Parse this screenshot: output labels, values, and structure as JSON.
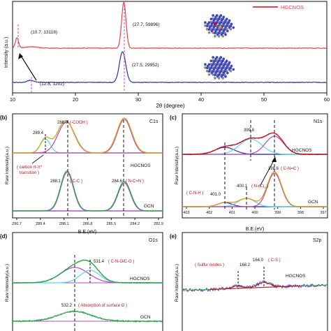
{
  "colors": {
    "red": "#e8414a",
    "blue": "#2d2fb0",
    "green": "#2fa24a",
    "gold": "#d9a21a",
    "magenta": "#b04bc0",
    "cyan": "#5fd6e0",
    "dashMagenta": "#d04ad0",
    "black": "#111111",
    "darkred": "#c0141c",
    "atomBlue": "#3b46c8",
    "atomGray": "#8a8a8a"
  },
  "panel_a": {
    "legend": "HGCNOS",
    "xlabel": "2θ (degree)",
    "ylabel": "Intensity (a.u.)",
    "xticks": [
      "10",
      "20",
      "30",
      "40",
      "50",
      "60"
    ],
    "annotations": [
      "(10.7, 13118)",
      "(27.7, 59896)",
      "(12.8, 1202)",
      "(27.5, 29952)"
    ]
  },
  "panel_b": {
    "letter": "(b)",
    "title": "C1s",
    "xlabel": "B.E.(eV)",
    "ylabel": "Raw Intensity(a.u.)",
    "xticks": [
      "290.7",
      "289.4",
      "288.1",
      "286.8",
      "285.5",
      "284.2",
      "282.9"
    ],
    "top_label": "HGCNOS",
    "bottom_label": "GCN",
    "peaks": [
      "289.4",
      "288.0",
      "(-COOH )",
      "288.1",
      "( C-C )",
      "284.6",
      "( N-C=N )"
    ],
    "note_line1": "( carbon π-π*",
    "note_line2": "transition )"
  },
  "panel_c": {
    "letter": "(c)",
    "title": "N1s",
    "xlabel": "B.E.(eV)",
    "ylabel": "Raw Intensity(a.u.)",
    "xticks": [
      "403",
      "402",
      "401",
      "400",
      "399",
      "398",
      "397"
    ],
    "top_label": "HGCNOS",
    "bottom_label": "GCN",
    "peaks": [
      "399.8",
      "400.1",
      "N-(C)",
      "3",
      "398.6",
      "( C-N=C )",
      "( C-N-H )",
      "401.0"
    ]
  },
  "panel_d": {
    "letter": "(d)",
    "title": "O1s",
    "ylabel": "Raw Intensity(a.u.)",
    "top_label": "HGCNOS",
    "bottom_label": "GCN",
    "peaks": [
      "531.4",
      "( C-N-O/C-O )",
      "532.2",
      "( Absorption of surface O )"
    ]
  },
  "panel_e": {
    "letter": "(e)",
    "title": "S2p",
    "ylabel": "Raw Intensity(a.u.)",
    "top_label": "HGCNOS",
    "peaks": [
      "( Sulfur oxides )",
      "168.2",
      "164.0",
      "( C-S )"
    ]
  },
  "chart_data": [
    {
      "type": "line",
      "panel": "(a)",
      "xlabel": "2θ (degree)",
      "ylabel": "Intensity (a.u.)",
      "xlim": [
        10,
        60
      ],
      "series": [
        {
          "name": "HGCNOS",
          "peaks": [
            {
              "x": 10.7,
              "y": 13118
            },
            {
              "x": 27.7,
              "y": 59896
            }
          ]
        },
        {
          "name": "",
          "peaks": [
            {
              "x": 12.8,
              "y": 1202
            },
            {
              "x": 27.5,
              "y": 29952
            }
          ]
        }
      ]
    },
    {
      "type": "line",
      "panel": "(b)",
      "title": "C1s",
      "xlabel": "B.E.(eV)",
      "ylabel": "Raw Intensity(a.u.)",
      "xlim": [
        290.7,
        282.9
      ],
      "series": [
        {
          "name": "HGCNOS",
          "peaks_eV": [
            289.4,
            288.0,
            284.6
          ]
        },
        {
          "name": "GCN",
          "peaks_eV": [
            288.1,
            284.6
          ]
        }
      ]
    },
    {
      "type": "line",
      "panel": "(c)",
      "title": "N1s",
      "xlabel": "B.E.(eV)",
      "ylabel": "Raw Intensity(a.u.)",
      "xlim": [
        403,
        397
      ],
      "series": [
        {
          "name": "HGCNOS",
          "peaks_eV": [
            401.0,
            399.8,
            398.6
          ]
        },
        {
          "name": "GCN",
          "peaks_eV": [
            401.0,
            400.1,
            398.6
          ]
        }
      ]
    },
    {
      "type": "line",
      "panel": "(d)",
      "title": "O1s",
      "ylabel": "Raw Intensity(a.u.)",
      "series": [
        {
          "name": "HGCNOS",
          "peaks_eV": [
            532.2,
            531.4
          ]
        },
        {
          "name": "GCN",
          "peaks_eV": [
            532.2
          ]
        }
      ]
    },
    {
      "type": "line",
      "panel": "(e)",
      "title": "S2p",
      "ylabel": "Raw Intensity(a.u.)",
      "series": [
        {
          "name": "HGCNOS",
          "peaks_eV": [
            168.2,
            164.0
          ]
        }
      ]
    }
  ]
}
